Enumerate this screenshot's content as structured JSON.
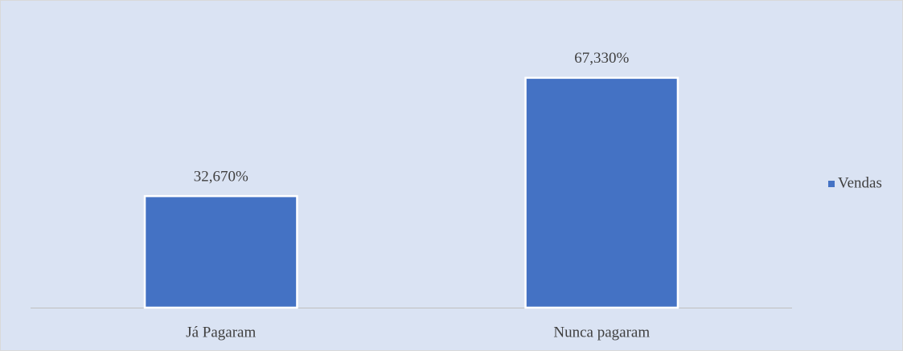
{
  "chart_data": {
    "type": "bar",
    "categories": [
      "Já Pagaram",
      "Nunca pagaram"
    ],
    "series": [
      {
        "name": "Vendas",
        "color": "#4472c4",
        "values": [
          32.67,
          67.33
        ],
        "value_labels": [
          "32,670%",
          "67,330%"
        ]
      }
    ],
    "ylim": [
      0,
      80
    ],
    "legend": "right"
  }
}
